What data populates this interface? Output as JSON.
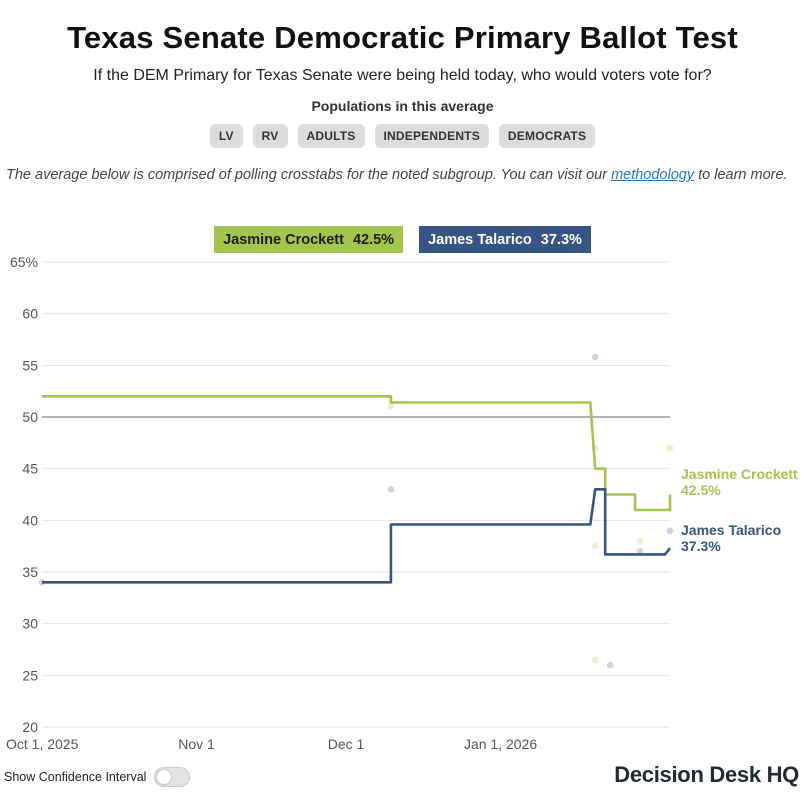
{
  "header": {
    "title": "Texas Senate Democratic Primary Ballot Test",
    "subtitle": "If the DEM Primary for Texas Senate were being held today, who would voters vote for?",
    "populations_label": "Populations in this average",
    "populations": [
      "LV",
      "RV",
      "ADULTS",
      "INDEPENDENTS",
      "DEMOCRATS"
    ]
  },
  "note": {
    "before": "The average below is comprised of polling crosstabs for the noted subgroup. You can visit our ",
    "link": "methodology",
    "after": " to learn more."
  },
  "legend": [
    {
      "name": "Jasmine Crockett",
      "value": "42.5%"
    },
    {
      "name": "James Talarico",
      "value": "37.3%"
    }
  ],
  "footer": {
    "ci_label": "Show Confidence Interval",
    "ci_on": false,
    "brand_part1": "Decision Desk HQ"
  },
  "colors": {
    "crockett": "#a3c44f",
    "talarico": "#365583"
  },
  "chart_data": {
    "type": "line",
    "ylim": [
      20,
      65
    ],
    "y_ticks": [
      20,
      25,
      30,
      35,
      40,
      45,
      50,
      55,
      60,
      65
    ],
    "y_tick_labels": [
      "20",
      "25",
      "30",
      "35",
      "40",
      "45",
      "50",
      "55",
      "60",
      "65%"
    ],
    "reference_line": 50,
    "x_range": [
      "2025-10-01",
      "2026-02-04"
    ],
    "x_ticks": [
      {
        "date": "2025-10-01",
        "label": "Oct 1, 2025"
      },
      {
        "date": "2025-11-01",
        "label": "Nov 1"
      },
      {
        "date": "2025-12-01",
        "label": "Dec 1"
      },
      {
        "date": "2026-01-01",
        "label": "Jan 1, 2026"
      }
    ],
    "grid": true,
    "series": [
      {
        "name": "Jasmine Crockett",
        "end_label": "42.5%",
        "color": "#a3c44f",
        "line": [
          {
            "x": "2025-10-01",
            "y": 52.0
          },
          {
            "x": "2025-12-10",
            "y": 52.0
          },
          {
            "x": "2025-12-10",
            "y": 51.4
          },
          {
            "x": "2026-01-19",
            "y": 51.4
          },
          {
            "x": "2026-01-20",
            "y": 45.0
          },
          {
            "x": "2026-01-22",
            "y": 45.0
          },
          {
            "x": "2026-01-22",
            "y": 42.5
          },
          {
            "x": "2026-01-28",
            "y": 42.5
          },
          {
            "x": "2026-01-28",
            "y": 41.0
          },
          {
            "x": "2026-02-04",
            "y": 41.0
          },
          {
            "x": "2026-02-04",
            "y": 42.5
          }
        ],
        "polls": [
          {
            "x": "2025-12-10",
            "y": 51.0
          },
          {
            "x": "2026-01-20",
            "y": 47.0
          },
          {
            "x": "2026-01-20",
            "y": 37.5
          },
          {
            "x": "2026-01-20",
            "y": 26.5
          },
          {
            "x": "2026-01-29",
            "y": 38.0
          },
          {
            "x": "2026-02-04",
            "y": 47.0
          }
        ]
      },
      {
        "name": "James Talarico",
        "end_label": "37.3%",
        "color": "#365583",
        "line": [
          {
            "x": "2025-10-01",
            "y": 34.0
          },
          {
            "x": "2025-12-10",
            "y": 34.0
          },
          {
            "x": "2025-12-10",
            "y": 39.6
          },
          {
            "x": "2026-01-19",
            "y": 39.6
          },
          {
            "x": "2026-01-20",
            "y": 43.0
          },
          {
            "x": "2026-01-22",
            "y": 43.0
          },
          {
            "x": "2026-01-22",
            "y": 36.7
          },
          {
            "x": "2026-02-03",
            "y": 36.7
          },
          {
            "x": "2026-02-04",
            "y": 37.3
          }
        ],
        "polls": [
          {
            "x": "2025-10-01",
            "y": 34.0
          },
          {
            "x": "2025-12-10",
            "y": 43.0
          },
          {
            "x": "2026-01-20",
            "y": 55.8
          },
          {
            "x": "2026-01-23",
            "y": 26.0
          },
          {
            "x": "2026-01-29",
            "y": 37.0
          },
          {
            "x": "2026-02-04",
            "y": 39.0
          }
        ]
      }
    ]
  }
}
